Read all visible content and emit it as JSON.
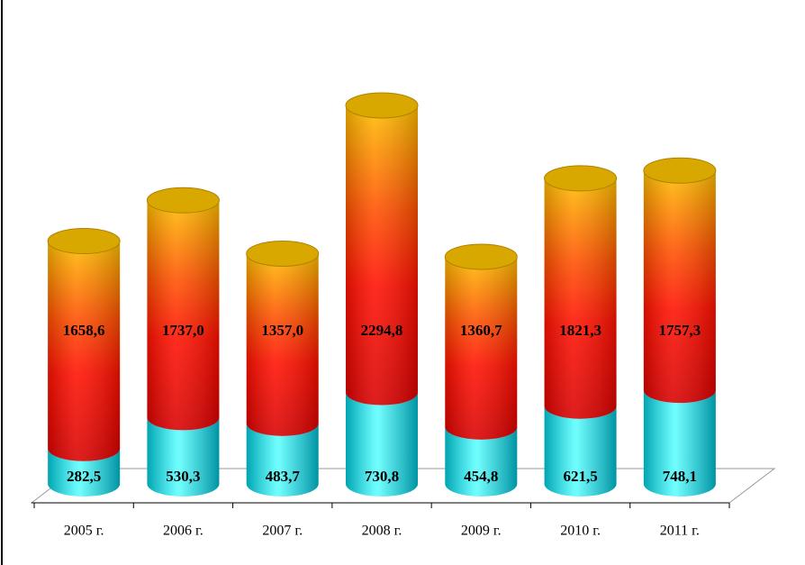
{
  "chart_data": {
    "type": "stacked-cylinder",
    "categories": [
      "2005 г.",
      "2006 г.",
      "2007 г.",
      "2008 г.",
      "2009 г.",
      "2010 г.",
      "2011 г."
    ],
    "series": [
      {
        "color": "#00e8f0",
        "values": [
          282.5,
          530.3,
          483.7,
          730.8,
          454.8,
          621.5,
          748.1
        ],
        "value_labels": [
          "282,5",
          "530,3",
          "483,7",
          "730,8",
          "454,8",
          "621,5",
          "748,1"
        ]
      },
      {
        "color": "#ff0000",
        "values": [
          1658.6,
          1737.0,
          1357.0,
          2294.8,
          1360.7,
          1821.3,
          1757.3
        ],
        "value_labels": [
          "1658,6",
          "1737,0",
          "1357,0",
          "2294,8",
          "1360,7",
          "1821,3",
          "1757,3"
        ]
      }
    ]
  }
}
